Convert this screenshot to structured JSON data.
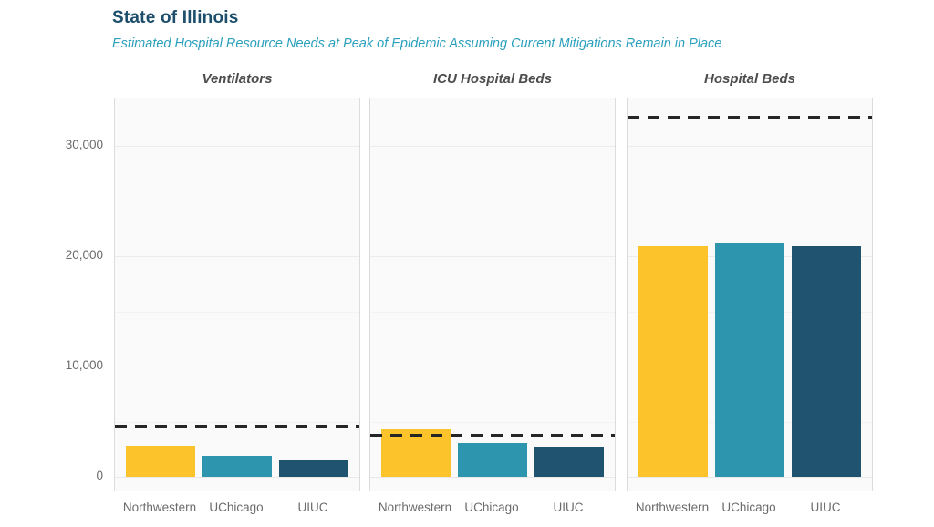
{
  "chart_data": {
    "type": "bar",
    "title": "State of Illinois",
    "subtitle": "Estimated Hospital Resource Needs at Peak of Epidemic Assuming Current Mitigations Remain in Place",
    "categories": [
      "Northwestern",
      "UChicago",
      "UIUC"
    ],
    "series_colors": [
      "#FCC32B",
      "#2E95AF",
      "#20536F"
    ],
    "capacity_line_color": "#262626",
    "legend_position": "none",
    "grid": "on",
    "ylim": [
      -1400,
      34300
    ],
    "y_ticks": [
      {
        "value": 0,
        "label": "0"
      },
      {
        "value": 10000,
        "label": "10,000"
      },
      {
        "value": 20000,
        "label": "20,000"
      },
      {
        "value": 30000,
        "label": "30,000"
      }
    ],
    "y_minor_gridlines": [
      5000,
      15000,
      25000
    ],
    "panels": [
      {
        "title": "Ventilators",
        "values": [
          2800,
          1900,
          1600
        ],
        "capacity": 4600
      },
      {
        "title": "ICU Hospital Beds",
        "values": [
          4400,
          3100,
          2700
        ],
        "capacity": 3800
      },
      {
        "title": "Hospital Beds",
        "values": [
          20900,
          21200,
          20900
        ],
        "capacity": 32600
      }
    ]
  }
}
